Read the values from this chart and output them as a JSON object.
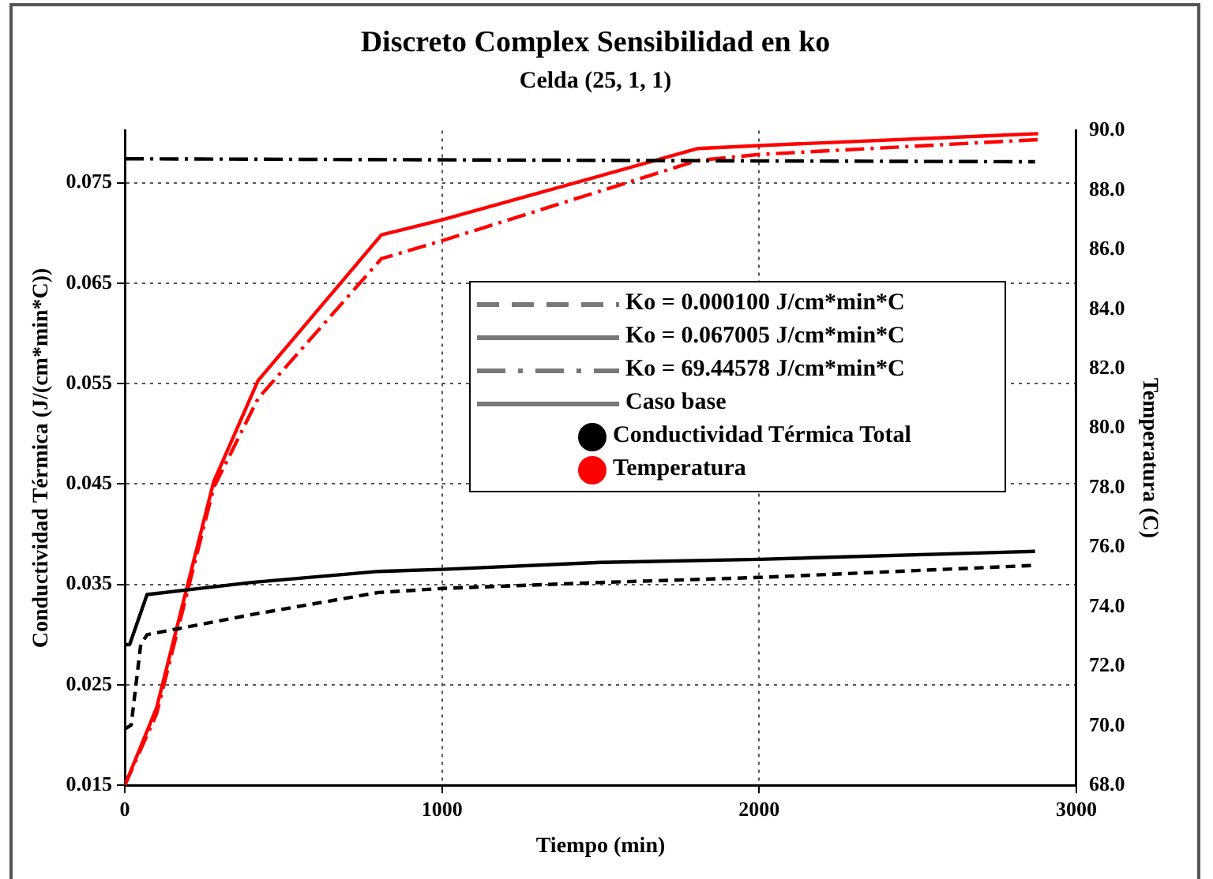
{
  "chart_data": {
    "type": "line",
    "title": "Discreto Complex Sensibilidad en ko",
    "subtitle": "Celda (25, 1, 1)",
    "xlabel": "Tiempo (min)",
    "ylabel": "Conductividad Térmica (J/(cm*min*C))",
    "y2label": "Temperatura (C)",
    "xlim": [
      0,
      3000
    ],
    "xticks": [
      0,
      1000,
      2000,
      3000
    ],
    "ylim": [
      0.015,
      0.0802
    ],
    "yticks": [
      0.015,
      0.025,
      0.035,
      0.045,
      0.055,
      0.065,
      0.075
    ],
    "y2lim": [
      68,
      90
    ],
    "y2ticks": [
      {
        "value": 68,
        "label": "68.0"
      },
      {
        "value": 70,
        "label": "70.0"
      },
      {
        "value": 72,
        "label": "72.0"
      },
      {
        "value": 74,
        "label": "74.0"
      },
      {
        "value": 76,
        "label": "76.0"
      },
      {
        "value": 78,
        "label": "78.0"
      },
      {
        "value": 80,
        "label": "80.0"
      },
      {
        "value": 82,
        "label": "82.0"
      },
      {
        "value": 84,
        "label": "84.0"
      },
      {
        "value": 86,
        "label": "86.0"
      },
      {
        "value": 88,
        "label": "88.0"
      },
      {
        "value": 90,
        "label": "90.0"
      }
    ],
    "grid": true,
    "legend": false,
    "marker": "none",
    "annotations": [
      "Ko = 0.000100 J/cm*min*C",
      "Ko = 0.067005 J/cm*min*C",
      "Ko = 69.44578 J/cm*min*C",
      "Caso base",
      "Conductividad Térmica Total",
      "Temperatura"
    ],
    "series": [
      {
        "color": "#000000",
        "line_style": "dashed",
        "x": [
          0,
          20,
          50,
          70,
          400,
          800,
          1000,
          1500,
          2000,
          2870
        ],
        "values": [
          0.0206,
          0.021,
          0.029,
          0.03,
          0.032,
          0.0342,
          0.0346,
          0.0352,
          0.0357,
          0.0369
        ]
      },
      {
        "color": "#000000",
        "line_style": "solid",
        "x": [
          0,
          15,
          70,
          400,
          800,
          1000,
          1500,
          2000,
          2870
        ],
        "values": [
          0.029,
          0.029,
          0.034,
          0.0352,
          0.0363,
          0.0365,
          0.0372,
          0.0375,
          0.0383
        ]
      },
      {
        "color": "#000000",
        "line_style": "dashdot",
        "x": [
          0,
          2870
        ],
        "values": [
          0.0774,
          0.0771
        ]
      },
      {
        "color": "#ff0000",
        "line_style": "solid",
        "axis": "y2",
        "x": [
          0,
          100,
          280,
          420,
          809,
          1000,
          1807,
          2000,
          2880
        ],
        "values": [
          68,
          70.6,
          78.2,
          81.6,
          86.5,
          87.0,
          89.4,
          89.5,
          89.9
        ]
      },
      {
        "color": "#ff0000",
        "line_style": "dashdot",
        "axis": "y2",
        "x": [
          0,
          100,
          280,
          420,
          809,
          1000,
          1807,
          2000,
          2880
        ],
        "values": [
          68,
          70.4,
          78.0,
          81.0,
          85.7,
          86.3,
          89.0,
          89.2,
          89.7
        ]
      }
    ]
  }
}
